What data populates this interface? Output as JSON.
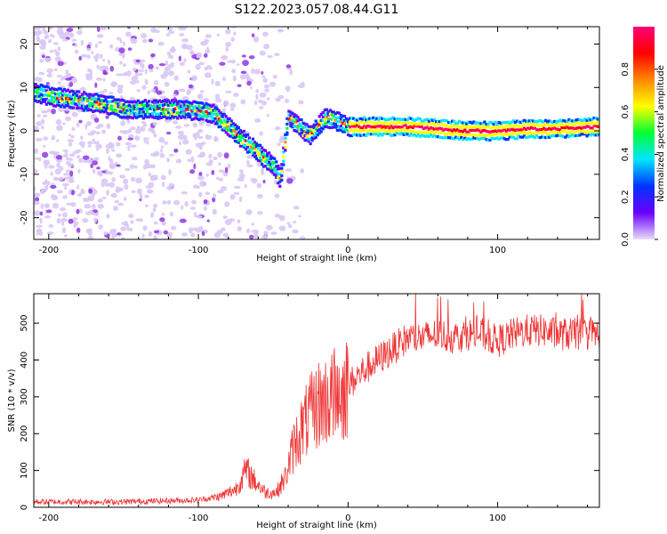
{
  "figure_title": "S122.2023.057.08.44.G11",
  "chart_data": [
    {
      "type": "heatmap",
      "name": "spectrogram",
      "xlabel": "Height of straight line (km)",
      "ylabel": "Frequency (Hz)",
      "xlim": [
        -210,
        168
      ],
      "ylim": [
        -25,
        24
      ],
      "xticks": [
        -200,
        -100,
        0,
        100
      ],
      "yticks": [
        -20,
        -10,
        0,
        10,
        20
      ],
      "colorbar": {
        "label": "Normalized spectral amplitude",
        "range": [
          0,
          1
        ],
        "ticks": [
          "0.0",
          "0.2",
          "0.4",
          "0.6",
          "0.8"
        ],
        "colormap": [
          "#e8dcf8",
          "#6a00ff",
          "#0033ff",
          "#00e5ff",
          "#00ff33",
          "#ffff00",
          "#ff8800",
          "#ff0000",
          "#ff0077"
        ]
      },
      "ridge": {
        "x": [
          -210,
          -200,
          -190,
          -180,
          -170,
          -160,
          -150,
          -140,
          -130,
          -120,
          -110,
          -100,
          -90,
          -80,
          -70,
          -60,
          -50,
          -45,
          -40,
          -35,
          -30,
          -25,
          -20,
          -15,
          -10,
          -5,
          0,
          10,
          20,
          40,
          60,
          80,
          100,
          120,
          140,
          168
        ],
        "y": [
          9,
          8,
          7.5,
          7,
          6.5,
          6,
          5,
          5,
          5,
          5,
          5,
          4.5,
          4,
          1,
          -2,
          -5,
          -8,
          -11,
          3,
          2,
          0,
          -1,
          1,
          3,
          2.5,
          2,
          1,
          1,
          1,
          1,
          0.5,
          0,
          0,
          0.5,
          0.5,
          1
        ]
      }
    },
    {
      "type": "line",
      "name": "snr",
      "xlabel": "Height of straight line (km)",
      "ylabel": "SNR (10 * v/v)",
      "xlim": [
        -210,
        168
      ],
      "ylim": [
        0,
        580
      ],
      "xticks": [
        -200,
        -100,
        0,
        100
      ],
      "yticks": [
        0,
        100,
        200,
        300,
        400,
        500
      ],
      "color": "#ee3333",
      "envelope": {
        "x": [
          -210,
          -150,
          -100,
          -85,
          -75,
          -68,
          -62,
          -55,
          -48,
          -42,
          -36,
          -30,
          -25,
          -20,
          -15,
          -10,
          -5,
          0,
          10,
          20,
          30,
          40,
          50,
          60,
          70,
          80,
          90,
          100,
          110,
          120,
          130,
          140,
          150,
          160,
          168
        ],
        "y": [
          15,
          15,
          20,
          30,
          50,
          100,
          70,
          40,
          40,
          80,
          170,
          220,
          250,
          280,
          290,
          300,
          310,
          330,
          370,
          400,
          430,
          460,
          460,
          470,
          460,
          470,
          470,
          450,
          470,
          480,
          480,
          470,
          470,
          470,
          470
        ]
      },
      "noise": 45
    }
  ]
}
